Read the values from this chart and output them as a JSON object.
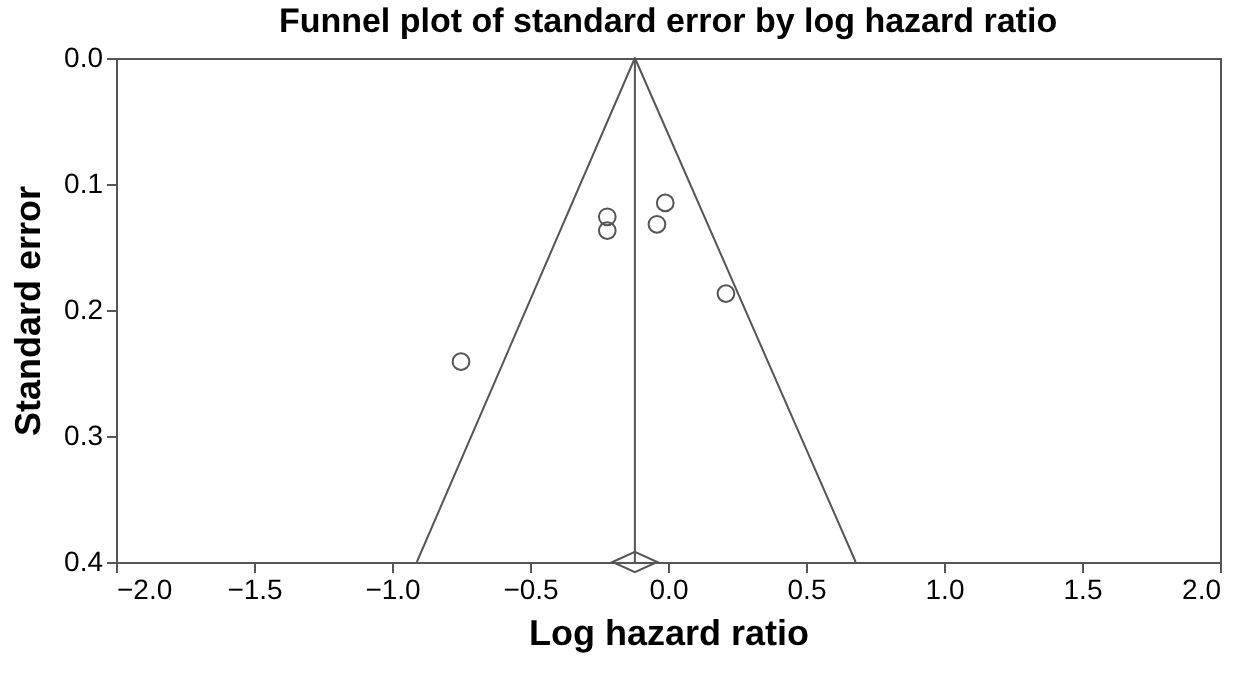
{
  "chart_data": {
    "type": "scatter",
    "title": "Funnel plot of standard error by log hazard ratio",
    "xlabel": "Log hazard ratio",
    "ylabel": "Standard error",
    "series": [
      {
        "type": "scatter",
        "marker": "circle",
        "color": "#555555",
        "x": [
          -0.22,
          -0.22,
          -0.01,
          -0.04,
          0.21,
          -0.75
        ],
        "values": [
          0.126,
          0.137,
          0.115,
          0.132,
          0.187,
          0.241
        ]
      },
      {
        "type": "line",
        "color": "#555555",
        "x": [
          -0.91,
          -0.12,
          0.68
        ],
        "values": [
          0.4,
          0.0,
          0.4
        ]
      },
      {
        "type": "scatter",
        "marker": "diamond",
        "color": "#555555",
        "x": [
          -0.12
        ],
        "values": [
          0.4
        ]
      }
    ],
    "ref_lines": [
      {
        "axis": "x",
        "value": -0.12,
        "color": "#555555"
      }
    ],
    "xlim": [
      -2.0,
      2.0
    ],
    "xticks": [
      {
        "value": -2,
        "label": "−2.0"
      },
      {
        "value": -1.5,
        "label": "−1.5"
      },
      {
        "value": -1,
        "label": "−1.0"
      },
      {
        "value": -0.5,
        "label": "−0.5"
      },
      {
        "value": 0,
        "label": "0.0"
      },
      {
        "value": 0.5,
        "label": "0.5"
      },
      {
        "value": 1,
        "label": "1.0"
      },
      {
        "value": 1.5,
        "label": "1.5"
      },
      {
        "value": 2,
        "label": "2.0"
      }
    ],
    "ylim": [
      0.4,
      0.0
    ],
    "yticks": [
      {
        "value": 0,
        "label": "0.0"
      },
      {
        "value": 0.1,
        "label": "0.1"
      },
      {
        "value": 0.2,
        "label": "0.2"
      },
      {
        "value": 0.3,
        "label": "0.3"
      },
      {
        "value": 0.4,
        "label": "0.4"
      }
    ],
    "grid": false
  }
}
